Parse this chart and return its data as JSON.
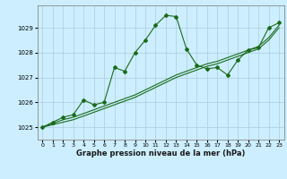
{
  "title": "Graphe pression niveau de la mer (hPa)",
  "background_color": "#cceeff",
  "grid_color": "#aaccdd",
  "line_color": "#1a6b1a",
  "marker_color": "#1a6b1a",
  "xlim": [
    -0.5,
    23.5
  ],
  "ylim": [
    1024.5,
    1029.9
  ],
  "yticks": [
    1025,
    1026,
    1027,
    1028,
    1029
  ],
  "xticks": [
    0,
    1,
    2,
    3,
    4,
    5,
    6,
    7,
    8,
    9,
    10,
    11,
    12,
    13,
    14,
    15,
    16,
    17,
    18,
    19,
    20,
    21,
    22,
    23
  ],
  "series": [
    [
      1025.0,
      1025.2,
      1025.4,
      1025.5,
      1026.1,
      1025.9,
      1026.0,
      1027.4,
      1027.25,
      1028.0,
      1028.5,
      1029.1,
      1029.5,
      1029.45,
      1028.15,
      1027.5,
      1027.35,
      1027.4,
      1027.1,
      1027.7,
      1028.1,
      1028.2,
      1029.0,
      1029.2
    ],
    [
      1025.0,
      1025.15,
      1025.3,
      1025.4,
      1025.55,
      1025.7,
      1025.85,
      1026.0,
      1026.15,
      1026.3,
      1026.5,
      1026.7,
      1026.9,
      1027.1,
      1027.25,
      1027.4,
      1027.55,
      1027.65,
      1027.8,
      1027.95,
      1028.1,
      1028.25,
      1028.6,
      1029.1
    ],
    [
      1025.0,
      1025.1,
      1025.2,
      1025.3,
      1025.45,
      1025.6,
      1025.75,
      1025.9,
      1026.05,
      1026.2,
      1026.4,
      1026.6,
      1026.8,
      1027.0,
      1027.15,
      1027.3,
      1027.45,
      1027.55,
      1027.7,
      1027.85,
      1028.0,
      1028.15,
      1028.5,
      1029.0
    ]
  ],
  "title_fontsize": 6.0,
  "tick_fontsize": 4.5
}
